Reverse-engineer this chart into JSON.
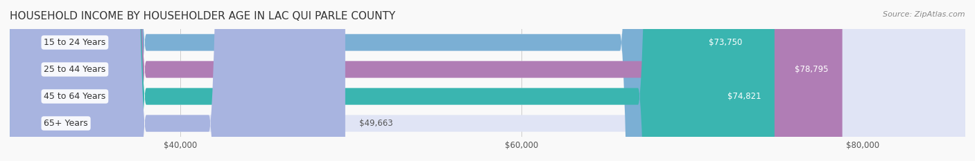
{
  "title": "HOUSEHOLD INCOME BY HOUSEHOLDER AGE IN LAC QUI PARLE COUNTY",
  "source": "Source: ZipAtlas.com",
  "categories": [
    "15 to 24 Years",
    "25 to 44 Years",
    "45 to 64 Years",
    "65+ Years"
  ],
  "values": [
    73750,
    78795,
    74821,
    49663
  ],
  "bar_colors": [
    "#7bafd4",
    "#b07db5",
    "#3ab5b0",
    "#a8b4e0"
  ],
  "bar_bg_colors": [
    "#ddeaf5",
    "#ecddf0",
    "#d0eeee",
    "#e0e4f5"
  ],
  "label_colors": [
    "#ffffff",
    "#ffffff",
    "#ffffff",
    "#555555"
  ],
  "x_min": 30000,
  "x_max": 86000,
  "x_ticks": [
    40000,
    60000,
    80000
  ],
  "x_tick_labels": [
    "$40,000",
    "$60,000",
    "$80,000"
  ],
  "value_labels": [
    "$73,750",
    "$78,795",
    "$74,821",
    "$49,663"
  ],
  "bg_color": "#f9f9f9",
  "title_fontsize": 11,
  "source_fontsize": 8,
  "label_fontsize": 9,
  "value_fontsize": 8.5,
  "tick_fontsize": 8.5
}
